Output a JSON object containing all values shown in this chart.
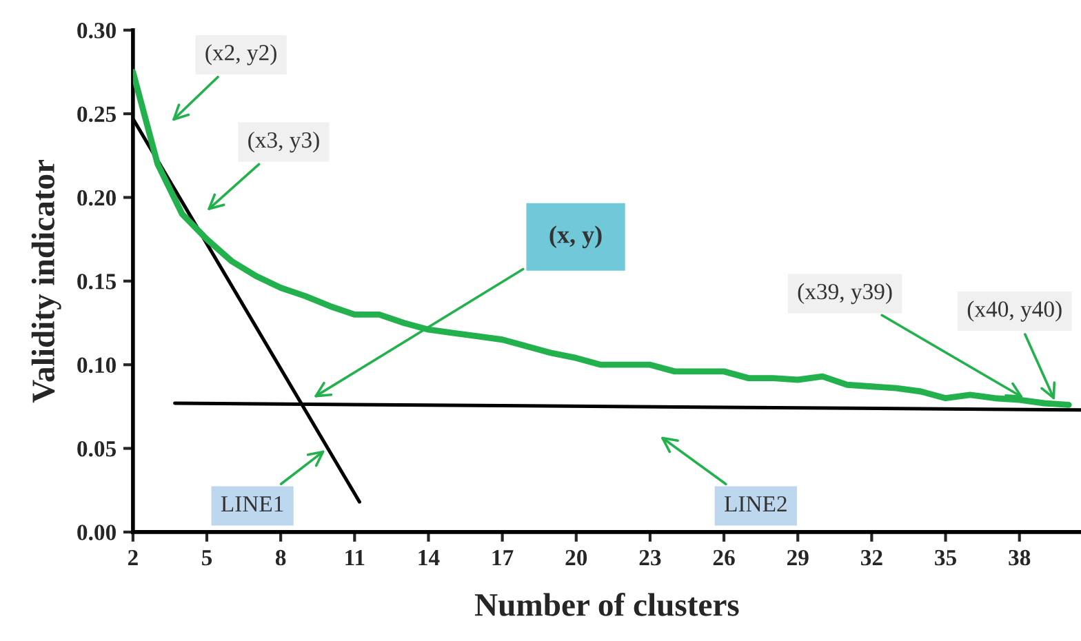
{
  "chart_data": {
    "type": "line",
    "xlabel": "Number of clusters",
    "ylabel": "Validity indicator",
    "xlim": [
      2,
      40.5
    ],
    "xticks": [
      2,
      5,
      8,
      11,
      14,
      17,
      20,
      23,
      26,
      29,
      32,
      35,
      38
    ],
    "ylim": [
      0,
      0.3
    ],
    "yticks": [
      {
        "value": 0,
        "label": "0.00"
      },
      {
        "value": 0.05,
        "label": "0.05"
      },
      {
        "value": 0.1,
        "label": "0.10"
      },
      {
        "value": 0.15,
        "label": "0.15"
      },
      {
        "value": 0.2,
        "label": "0.20"
      },
      {
        "value": 0.25,
        "label": "0.25"
      },
      {
        "value": 0.3,
        "label": "0.30"
      }
    ],
    "grid": false,
    "legend": false,
    "marker": "none",
    "line_style": "solid",
    "series": [
      {
        "color": "#22b14c",
        "x": [
          2,
          3,
          4,
          5,
          6,
          7,
          8,
          9,
          10,
          11,
          12,
          13,
          14,
          15,
          16,
          17,
          18,
          19,
          20,
          21,
          22,
          23,
          24,
          25,
          26,
          27,
          28,
          29,
          30,
          31,
          32,
          33,
          34,
          35,
          36,
          37,
          38,
          39,
          40
        ],
        "values": [
          0.275,
          0.22,
          0.19,
          0.175,
          0.162,
          0.153,
          0.146,
          0.141,
          0.135,
          0.13,
          0.13,
          0.125,
          0.121,
          0.119,
          0.117,
          0.115,
          0.111,
          0.107,
          0.104,
          0.1,
          0.1,
          0.1,
          0.096,
          0.096,
          0.096,
          0.092,
          0.092,
          0.091,
          0.093,
          0.088,
          0.087,
          0.086,
          0.084,
          0.08,
          0.082,
          0.08,
          0.079,
          0.077,
          0.076
        ]
      },
      {
        "type": "line",
        "color": "#000000",
        "x": [
          2,
          11.2
        ],
        "values": [
          0.247,
          0.018
        ]
      },
      {
        "type": "line",
        "color": "#000000",
        "x": [
          3.7,
          40.5
        ],
        "values": [
          0.077,
          0.073
        ]
      }
    ],
    "annotations": [
      "(x2, y2)",
      "(x3, y3)",
      "(x, y)",
      "LINE1",
      "LINE2",
      {
        "text": "(x39, y39)",
        "x": 38.3,
        "y": 0.079
      },
      {
        "text": "(x40, y40)",
        "x": 39.5,
        "y": 0.0765
      }
    ]
  }
}
